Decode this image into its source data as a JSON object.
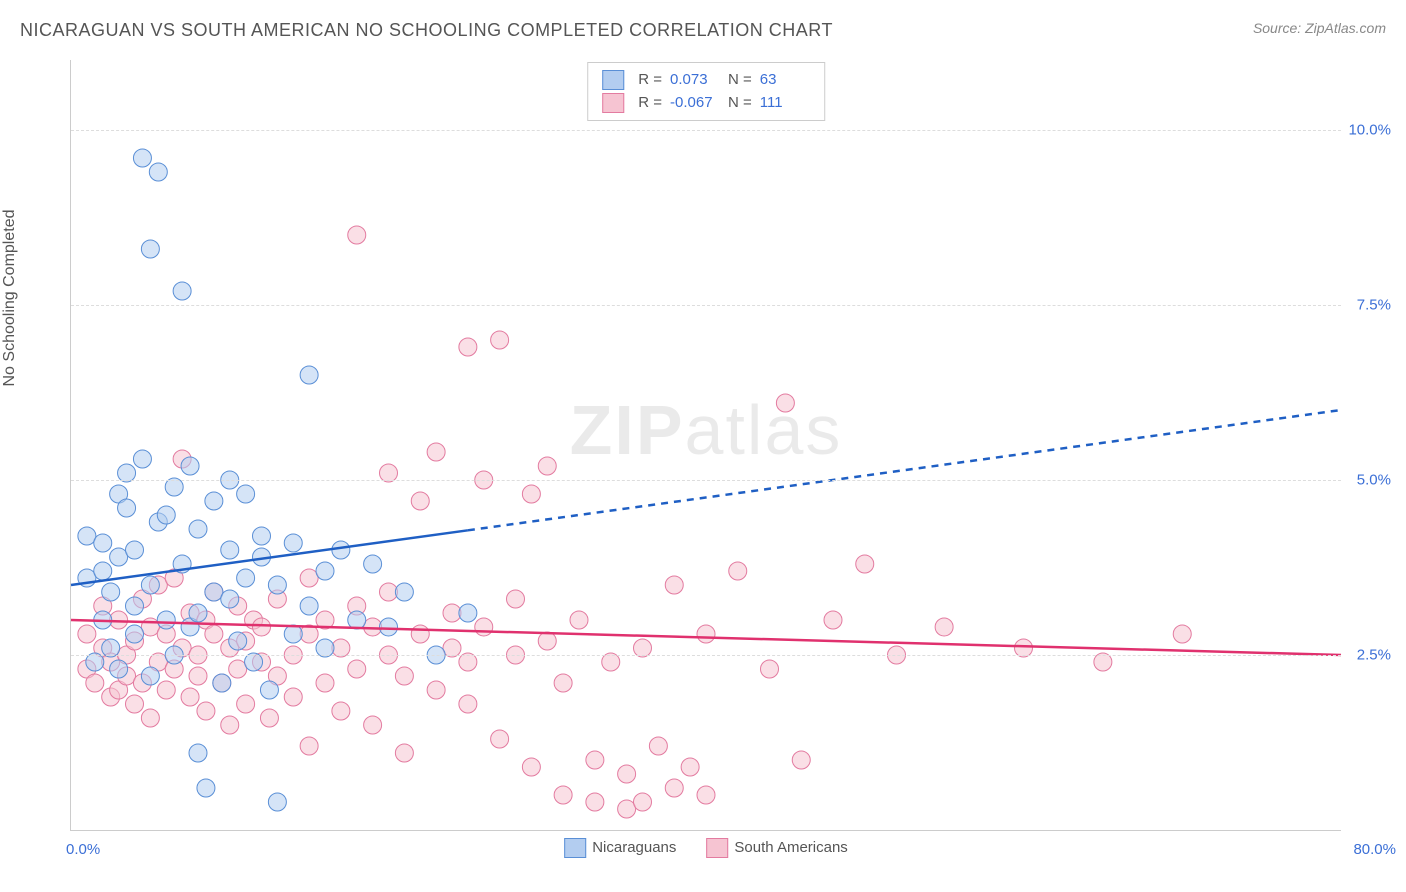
{
  "header": {
    "title": "NICARAGUAN VS SOUTH AMERICAN NO SCHOOLING COMPLETED CORRELATION CHART",
    "source_label": "Source:",
    "source_value": "ZipAtlas.com"
  },
  "watermark": {
    "part1": "ZIP",
    "part2": "atlas"
  },
  "chart": {
    "type": "scatter",
    "ylabel": "No Schooling Completed",
    "xlim": [
      0,
      80
    ],
    "ylim": [
      0,
      11
    ],
    "x_ticks": [
      {
        "v": 0,
        "label": "0.0%"
      },
      {
        "v": 80,
        "label": "80.0%"
      }
    ],
    "y_ticks": [
      {
        "v": 2.5,
        "label": "2.5%"
      },
      {
        "v": 5.0,
        "label": "5.0%"
      },
      {
        "v": 7.5,
        "label": "7.5%"
      },
      {
        "v": 10.0,
        "label": "10.0%"
      }
    ],
    "grid_color": "#dddddd",
    "axis_color": "#cccccc",
    "tick_color": "#3b6fd6",
    "background_color": "#ffffff",
    "marker_radius": 9,
    "marker_opacity": 0.55,
    "series": {
      "nicaraguans": {
        "label": "Nicaraguans",
        "fill": "#b3cdf0",
        "stroke": "#5a8fd6",
        "r": 0.073,
        "n": 63,
        "trend": {
          "x1": 0,
          "y1": 3.5,
          "x2": 80,
          "y2": 6.0,
          "solid_until_x": 25,
          "color": "#1f5fc4",
          "width": 2.5
        },
        "points": [
          [
            1,
            3.6
          ],
          [
            1,
            4.2
          ],
          [
            1.5,
            2.4
          ],
          [
            2,
            3.7
          ],
          [
            2,
            3.0
          ],
          [
            2,
            4.1
          ],
          [
            2.5,
            2.6
          ],
          [
            2.5,
            3.4
          ],
          [
            3,
            4.8
          ],
          [
            3,
            2.3
          ],
          [
            3,
            3.9
          ],
          [
            3.5,
            5.1
          ],
          [
            3.5,
            4.6
          ],
          [
            4,
            3.2
          ],
          [
            4,
            4.0
          ],
          [
            4,
            2.8
          ],
          [
            4.5,
            5.3
          ],
          [
            4.5,
            9.6
          ],
          [
            5,
            2.2
          ],
          [
            5,
            3.5
          ],
          [
            5,
            8.3
          ],
          [
            5.5,
            4.4
          ],
          [
            5.5,
            9.4
          ],
          [
            6,
            3.0
          ],
          [
            6,
            4.5
          ],
          [
            6.5,
            2.5
          ],
          [
            6.5,
            4.9
          ],
          [
            7,
            3.8
          ],
          [
            7,
            7.7
          ],
          [
            7.5,
            2.9
          ],
          [
            7.5,
            5.2
          ],
          [
            8,
            4.3
          ],
          [
            8,
            3.1
          ],
          [
            8,
            1.1
          ],
          [
            8.5,
            0.6
          ],
          [
            9,
            4.7
          ],
          [
            9,
            3.4
          ],
          [
            9.5,
            2.1
          ],
          [
            10,
            4.0
          ],
          [
            10,
            3.3
          ],
          [
            10,
            5.0
          ],
          [
            10.5,
            2.7
          ],
          [
            11,
            3.6
          ],
          [
            11,
            4.8
          ],
          [
            11.5,
            2.4
          ],
          [
            12,
            3.9
          ],
          [
            12,
            4.2
          ],
          [
            12.5,
            2.0
          ],
          [
            13,
            3.5
          ],
          [
            13,
            0.4
          ],
          [
            14,
            2.8
          ],
          [
            14,
            4.1
          ],
          [
            15,
            3.2
          ],
          [
            15,
            6.5
          ],
          [
            16,
            2.6
          ],
          [
            16,
            3.7
          ],
          [
            17,
            4.0
          ],
          [
            18,
            3.0
          ],
          [
            19,
            3.8
          ],
          [
            20,
            2.9
          ],
          [
            21,
            3.4
          ],
          [
            23,
            2.5
          ],
          [
            25,
            3.1
          ]
        ]
      },
      "south_americans": {
        "label": "South Americans",
        "fill": "#f6c4d2",
        "stroke": "#e37ba0",
        "r": -0.067,
        "n": 111,
        "trend": {
          "x1": 0,
          "y1": 3.0,
          "x2": 80,
          "y2": 2.5,
          "solid_until_x": 80,
          "color": "#e0316e",
          "width": 2.5
        },
        "points": [
          [
            1,
            2.3
          ],
          [
            1,
            2.8
          ],
          [
            1.5,
            2.1
          ],
          [
            2,
            2.6
          ],
          [
            2,
            3.2
          ],
          [
            2.5,
            1.9
          ],
          [
            2.5,
            2.4
          ],
          [
            3,
            2.0
          ],
          [
            3,
            3.0
          ],
          [
            3.5,
            2.5
          ],
          [
            3.5,
            2.2
          ],
          [
            4,
            1.8
          ],
          [
            4,
            2.7
          ],
          [
            4.5,
            3.3
          ],
          [
            4.5,
            2.1
          ],
          [
            5,
            2.9
          ],
          [
            5,
            1.6
          ],
          [
            5.5,
            2.4
          ],
          [
            5.5,
            3.5
          ],
          [
            6,
            2.0
          ],
          [
            6,
            2.8
          ],
          [
            6.5,
            3.6
          ],
          [
            6.5,
            2.3
          ],
          [
            7,
            5.3
          ],
          [
            7,
            2.6
          ],
          [
            7.5,
            1.9
          ],
          [
            7.5,
            3.1
          ],
          [
            8,
            2.5
          ],
          [
            8,
            2.2
          ],
          [
            8.5,
            3.0
          ],
          [
            8.5,
            1.7
          ],
          [
            9,
            2.8
          ],
          [
            9,
            3.4
          ],
          [
            9.5,
            2.1
          ],
          [
            10,
            2.6
          ],
          [
            10,
            1.5
          ],
          [
            10.5,
            3.2
          ],
          [
            10.5,
            2.3
          ],
          [
            11,
            2.7
          ],
          [
            11,
            1.8
          ],
          [
            11.5,
            3.0
          ],
          [
            12,
            2.4
          ],
          [
            12,
            2.9
          ],
          [
            12.5,
            1.6
          ],
          [
            13,
            2.2
          ],
          [
            13,
            3.3
          ],
          [
            14,
            2.5
          ],
          [
            14,
            1.9
          ],
          [
            15,
            2.8
          ],
          [
            15,
            3.6
          ],
          [
            15,
            1.2
          ],
          [
            16,
            2.1
          ],
          [
            16,
            3.0
          ],
          [
            17,
            2.6
          ],
          [
            17,
            1.7
          ],
          [
            18,
            3.2
          ],
          [
            18,
            2.3
          ],
          [
            18,
            8.5
          ],
          [
            19,
            2.9
          ],
          [
            19,
            1.5
          ],
          [
            20,
            2.5
          ],
          [
            20,
            3.4
          ],
          [
            20,
            5.1
          ],
          [
            21,
            2.2
          ],
          [
            21,
            1.1
          ],
          [
            22,
            2.8
          ],
          [
            22,
            4.7
          ],
          [
            23,
            2.0
          ],
          [
            23,
            5.4
          ],
          [
            24,
            2.6
          ],
          [
            24,
            3.1
          ],
          [
            25,
            1.8
          ],
          [
            25,
            2.4
          ],
          [
            25,
            6.9
          ],
          [
            26,
            5.0
          ],
          [
            26,
            2.9
          ],
          [
            27,
            7.0
          ],
          [
            27,
            1.3
          ],
          [
            28,
            2.5
          ],
          [
            28,
            3.3
          ],
          [
            29,
            4.8
          ],
          [
            29,
            0.9
          ],
          [
            30,
            2.7
          ],
          [
            30,
            5.2
          ],
          [
            31,
            0.5
          ],
          [
            31,
            2.1
          ],
          [
            32,
            3.0
          ],
          [
            33,
            1.0
          ],
          [
            33,
            0.4
          ],
          [
            34,
            2.4
          ],
          [
            35,
            0.8
          ],
          [
            35,
            0.3
          ],
          [
            36,
            2.6
          ],
          [
            36,
            0.4
          ],
          [
            37,
            1.2
          ],
          [
            38,
            0.6
          ],
          [
            38,
            3.5
          ],
          [
            39,
            0.9
          ],
          [
            40,
            2.8
          ],
          [
            40,
            0.5
          ],
          [
            42,
            3.7
          ],
          [
            44,
            2.3
          ],
          [
            45,
            6.1
          ],
          [
            46,
            1.0
          ],
          [
            48,
            3.0
          ],
          [
            50,
            3.8
          ],
          [
            52,
            2.5
          ],
          [
            55,
            2.9
          ],
          [
            60,
            2.6
          ],
          [
            65,
            2.4
          ],
          [
            70,
            2.8
          ]
        ]
      }
    }
  },
  "stats_box": {
    "rows": [
      {
        "swatch_fill": "#b3cdf0",
        "swatch_stroke": "#5a8fd6",
        "r_label": "R =",
        "r_val": "0.073",
        "n_label": "N =",
        "n_val": "63"
      },
      {
        "swatch_fill": "#f6c4d2",
        "swatch_stroke": "#e37ba0",
        "r_label": "R =",
        "r_val": "-0.067",
        "n_label": "N =",
        "n_val": "111"
      }
    ]
  },
  "legend_bottom": [
    {
      "swatch_fill": "#b3cdf0",
      "swatch_stroke": "#5a8fd6",
      "label": "Nicaraguans"
    },
    {
      "swatch_fill": "#f6c4d2",
      "swatch_stroke": "#e37ba0",
      "label": "South Americans"
    }
  ]
}
